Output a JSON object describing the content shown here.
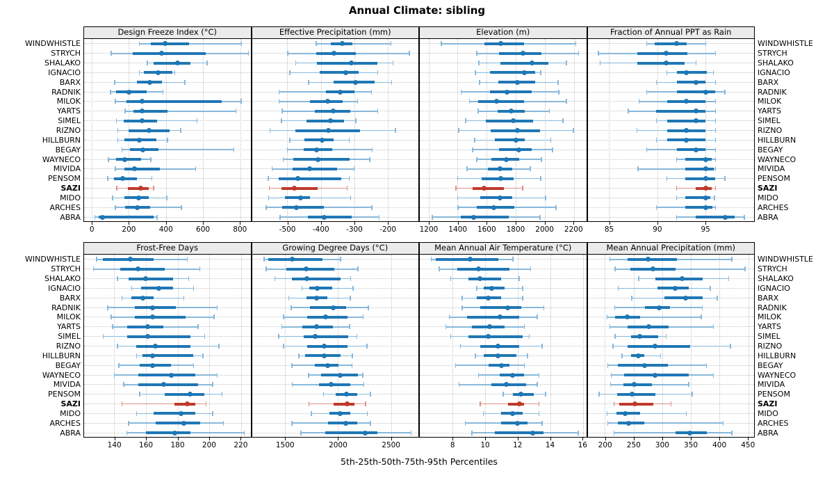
{
  "title": "Annual Climate: sibling",
  "xlabel": "5th-25th-50th-75th-95th Percentiles",
  "locations": [
    "WINDWHISTLE",
    "STRYCH",
    "SHALAKO",
    "IGNACIO",
    "BARX",
    "RADNIK",
    "MILOK",
    "YARTS",
    "SIMEL",
    "RIZNO",
    "HILLBURN",
    "BEGAY",
    "WAYNECO",
    "MIVIDA",
    "PENSOM",
    "SAZI",
    "MIDO",
    "ARCHES",
    "ABRA"
  ],
  "highlight_location": "SAZI",
  "percentile_labels": [
    "5th",
    "25th",
    "50th",
    "75th",
    "95th"
  ],
  "colors": {
    "series": "#1f77b4",
    "series_light": "#88b8da",
    "highlight": "#c0392b",
    "highlight_light": "#dd9187",
    "grid": "#c4c4c4",
    "header_bg": "#ebebeb",
    "border": "#000000"
  },
  "chart_data": [
    {
      "type": "dot-whisker",
      "title": "Design Freeze Index (°C)",
      "xlim": [
        -40,
        855
      ],
      "ticks": [
        0,
        200,
        400,
        600,
        800
      ],
      "rows": [
        [
          258,
          318,
          395,
          524,
          806
        ],
        [
          106,
          223,
          378,
          613,
          844
        ],
        [
          300,
          334,
          462,
          530,
          621
        ],
        [
          258,
          281,
          359,
          435,
          448
        ],
        [
          125,
          245,
          315,
          378,
          502
        ],
        [
          102,
          131,
          201,
          296,
          385
        ],
        [
          129,
          188,
          273,
          700,
          805
        ],
        [
          180,
          227,
          273,
          408,
          777
        ],
        [
          134,
          173,
          273,
          353,
          568
        ],
        [
          142,
          201,
          309,
          420,
          480
        ],
        [
          142,
          176,
          256,
          347,
          408
        ],
        [
          163,
          208,
          277,
          360,
          765
        ],
        [
          91,
          132,
          180,
          268,
          318
        ],
        [
          129,
          176,
          230,
          366,
          560
        ],
        [
          87,
          119,
          167,
          243,
          325
        ],
        [
          135,
          195,
          265,
          309,
          334
        ],
        [
          113,
          176,
          252,
          309,
          404
        ],
        [
          129,
          182,
          246,
          315,
          484
        ],
        [
          18,
          37,
          59,
          334,
          353
        ]
      ]
    },
    {
      "type": "dot-whisker",
      "title": "Effective Precipitation (mm)",
      "xlim": [
        -605,
        -110
      ],
      "ticks": [
        -500,
        -400,
        -300,
        -200
      ],
      "rows": [
        [
          -414,
          -371,
          -336,
          -306,
          -192
        ],
        [
          -499,
          -414,
          -361,
          -295,
          -137
        ],
        [
          -475,
          -411,
          -310,
          -231,
          -185
        ],
        [
          -492,
          -404,
          -327,
          -288,
          -231
        ],
        [
          -437,
          -363,
          -298,
          -240,
          -190
        ],
        [
          -524,
          -384,
          -342,
          -301,
          -250
        ],
        [
          -524,
          -433,
          -380,
          -336,
          -291
        ],
        [
          -515,
          -418,
          -363,
          -312,
          -231
        ],
        [
          -517,
          -442,
          -371,
          -332,
          -296
        ],
        [
          -551,
          -476,
          -378,
          -284,
          -178
        ],
        [
          -492,
          -449,
          -397,
          -363,
          -316
        ],
        [
          -500,
          -452,
          -412,
          -366,
          -247
        ],
        [
          -512,
          -481,
          -408,
          -314,
          -255
        ],
        [
          -545,
          -484,
          -433,
          -351,
          -301
        ],
        [
          -556,
          -525,
          -469,
          -339,
          -316
        ],
        [
          -553,
          -518,
          -478,
          -410,
          -322
        ],
        [
          -555,
          -507,
          -460,
          -432,
          -312
        ],
        [
          -563,
          -515,
          -473,
          -392,
          -248
        ],
        [
          -521,
          -438,
          -390,
          -308,
          -227
        ]
      ]
    },
    {
      "type": "dot-whisker",
      "title": "Elevation (m)",
      "xlim": [
        1140,
        2285
      ],
      "ticks": [
        1200,
        1400,
        1600,
        1800,
        2000,
        2200
      ],
      "rows": [
        [
          1288,
          1584,
          1696,
          1856,
          2213
        ],
        [
          1531,
          1683,
          1851,
          1976,
          2232
        ],
        [
          1547,
          1696,
          1912,
          2024,
          2149
        ],
        [
          1523,
          1624,
          1861,
          1936,
          1973
        ],
        [
          1552,
          1680,
          1813,
          1936,
          2091
        ],
        [
          1424,
          1624,
          1741,
          1912,
          2096
        ],
        [
          1483,
          1541,
          1669,
          1856,
          2149
        ],
        [
          1541,
          1677,
          1768,
          1864,
          2032
        ],
        [
          1456,
          1592,
          1781,
          1920,
          2125
        ],
        [
          1408,
          1629,
          1813,
          1965,
          2197
        ],
        [
          1517,
          1656,
          1803,
          1864,
          2040
        ],
        [
          1504,
          1685,
          1819,
          1912,
          2053
        ],
        [
          1531,
          1632,
          1733,
          1824,
          1976
        ],
        [
          1464,
          1608,
          1691,
          1776,
          1899
        ],
        [
          1400,
          1565,
          1699,
          1784,
          1973
        ],
        [
          1389,
          1504,
          1584,
          1720,
          1848
        ],
        [
          1400,
          1557,
          1691,
          1776,
          2005
        ],
        [
          1403,
          1533,
          1651,
          1792,
          2077
        ],
        [
          1227,
          1421,
          1512,
          1752,
          1968
        ]
      ]
    },
    {
      "type": "dot-whisker",
      "title": "Fraction of Annual PPT as Rain",
      "xlim": [
        82.8,
        100
      ],
      "ticks": [
        85,
        90,
        95
      ],
      "rows": [
        [
          88.9,
          89.7,
          92.0,
          93.0,
          95.0
        ],
        [
          83.9,
          87.9,
          90.9,
          93.1,
          96.0
        ],
        [
          84.1,
          87.9,
          90.9,
          92.8,
          94.0
        ],
        [
          91.0,
          92.0,
          93.0,
          95.1,
          95.8
        ],
        [
          89.9,
          92.0,
          94.0,
          95.0,
          96.0
        ],
        [
          88.9,
          92.0,
          95.0,
          96.0,
          97.0
        ],
        [
          88.1,
          91.0,
          93.0,
          95.0,
          96.0
        ],
        [
          87.0,
          89.9,
          94.0,
          95.0,
          96.0
        ],
        [
          89.9,
          91.0,
          94.0,
          95.0,
          96.0
        ],
        [
          87.9,
          91.0,
          93.0,
          95.0,
          96.0
        ],
        [
          89.9,
          91.0,
          93.0,
          95.0,
          96.0
        ],
        [
          88.9,
          92.0,
          94.0,
          95.0,
          96.0
        ],
        [
          92.0,
          92.9,
          95.0,
          95.6,
          96.0
        ],
        [
          88.0,
          92.9,
          95.0,
          95.8,
          96.0
        ],
        [
          91.0,
          92.9,
          95.0,
          96.0,
          97.0
        ],
        [
          92.0,
          94.0,
          95.0,
          95.6,
          96.0
        ],
        [
          92.0,
          92.9,
          95.0,
          95.5,
          95.9
        ],
        [
          89.9,
          92.9,
          95.0,
          95.7,
          96.0
        ],
        [
          92.0,
          94.0,
          97.0,
          98.0,
          99.0
        ]
      ]
    },
    {
      "type": "dot-whisker",
      "title": "Frost-Free Days",
      "xlim": [
        121,
        226
      ],
      "ticks": [
        140,
        160,
        180,
        200,
        220
      ],
      "rows": [
        [
          129,
          133,
          150,
          165,
          186
        ],
        [
          127,
          144,
          155,
          172,
          194
        ],
        [
          142,
          149,
          160,
          177,
          187
        ],
        [
          151,
          157,
          168,
          177,
          190
        ],
        [
          145,
          151,
          158,
          165,
          184
        ],
        [
          136,
          153,
          164,
          179,
          205
        ],
        [
          138,
          153,
          164,
          185,
          203
        ],
        [
          139,
          148,
          161,
          171,
          193
        ],
        [
          133,
          148,
          161,
          188,
          197
        ],
        [
          142,
          154,
          166,
          188,
          206
        ],
        [
          154,
          158,
          164,
          190,
          196
        ],
        [
          143,
          156,
          164,
          176,
          190
        ],
        [
          140,
          155,
          176,
          191,
          205
        ],
        [
          146,
          155,
          171,
          193,
          202
        ],
        [
          156,
          172,
          188,
          197,
          208
        ],
        [
          145,
          178,
          186,
          191,
          198
        ],
        [
          154,
          165,
          182,
          191,
          202
        ],
        [
          149,
          166,
          184,
          194,
          209
        ],
        [
          148,
          160,
          178,
          188,
          222
        ]
      ]
    },
    {
      "type": "dot-whisker",
      "title": "Growing Degree Days (°C)",
      "xlim": [
        1190,
        2755
      ],
      "ticks": [
        1500,
        2000,
        2500
      ],
      "rows": [
        [
          1304,
          1341,
          1570,
          1852,
          2022
        ],
        [
          1324,
          1515,
          1700,
          1967,
          2185
        ],
        [
          1407,
          1565,
          1707,
          2026,
          2117
        ],
        [
          1661,
          1728,
          1802,
          1946,
          2141
        ],
        [
          1537,
          1700,
          1798,
          1902,
          2113
        ],
        [
          1559,
          1733,
          1954,
          2076,
          2283
        ],
        [
          1487,
          1707,
          1885,
          2091,
          2237
        ],
        [
          1472,
          1661,
          1798,
          1950,
          2109
        ],
        [
          1443,
          1678,
          1783,
          2098,
          2178
        ],
        [
          1487,
          1711,
          1870,
          2087,
          2272
        ],
        [
          1630,
          1689,
          1867,
          2026,
          2135
        ],
        [
          1565,
          1783,
          1900,
          2004,
          2130
        ],
        [
          1722,
          1837,
          2020,
          2185,
          2233
        ],
        [
          1570,
          1820,
          1935,
          2113,
          2243
        ],
        [
          1863,
          1978,
          2080,
          2178,
          2304
        ],
        [
          1726,
          1957,
          2085,
          2157,
          2259
        ],
        [
          1748,
          1917,
          2022,
          2117,
          2276
        ],
        [
          1565,
          1907,
          2070,
          2178,
          2304
        ],
        [
          1652,
          1880,
          2254,
          2370,
          2685
        ]
      ]
    },
    {
      "type": "dot-whisker",
      "title": "Mean Annual Air Temperature (°C)",
      "xlim": [
        6,
        16.2
      ],
      "ticks": [
        8,
        10,
        12,
        14,
        16
      ],
      "rows": [
        [
          6.7,
          7.0,
          9.1,
          10.8,
          11.7
        ],
        [
          7.2,
          8.3,
          9.6,
          11.5,
          12.8
        ],
        [
          7.9,
          9.0,
          9.7,
          11.0,
          12.1
        ],
        [
          9.5,
          9.9,
          10.4,
          11.2,
          12.3
        ],
        [
          8.6,
          9.5,
          10.2,
          11.0,
          12.3
        ],
        [
          8.6,
          9.7,
          11.4,
          12.2,
          13.6
        ],
        [
          7.8,
          8.9,
          10.9,
          12.1,
          13.2
        ],
        [
          7.6,
          9.2,
          10.3,
          11.2,
          12.4
        ],
        [
          7.9,
          9.0,
          10.2,
          12.3,
          12.7
        ],
        [
          8.5,
          9.7,
          10.8,
          12.1,
          13.5
        ],
        [
          9.4,
          9.9,
          10.8,
          11.9,
          12.6
        ],
        [
          8.2,
          10.2,
          11.0,
          11.5,
          12.4
        ],
        [
          9.6,
          10.9,
          11.7,
          12.4,
          13.3
        ],
        [
          8.4,
          10.4,
          11.3,
          12.5,
          13.2
        ],
        [
          11.1,
          11.7,
          12.2,
          13.0,
          13.7
        ],
        [
          9.7,
          11.4,
          12.1,
          12.4,
          13.3
        ],
        [
          9.9,
          11.0,
          11.7,
          12.3,
          13.3
        ],
        [
          8.8,
          11.0,
          12.0,
          12.6,
          13.5
        ],
        [
          9.2,
          10.6,
          12.9,
          13.6,
          15.7
        ]
      ]
    },
    {
      "type": "dot-whisker",
      "title": "Mean Annual Precipitation (mm)",
      "xlim": [
        170,
        460
      ],
      "ticks": [
        200,
        250,
        300,
        350,
        400,
        450
      ],
      "rows": [
        [
          209,
          240,
          275,
          326,
          421
        ],
        [
          218,
          245,
          284,
          323,
          444
        ],
        [
          259,
          288,
          335,
          370,
          416
        ],
        [
          223,
          292,
          323,
          346,
          384
        ],
        [
          247,
          304,
          341,
          370,
          396
        ],
        [
          217,
          270,
          295,
          314,
          370
        ],
        [
          204,
          218,
          239,
          262,
          368
        ],
        [
          209,
          240,
          276,
          311,
          389
        ],
        [
          218,
          246,
          261,
          293,
          307
        ],
        [
          214,
          240,
          287,
          349,
          419
        ],
        [
          230,
          246,
          258,
          269,
          297
        ],
        [
          205,
          223,
          269,
          310,
          377
        ],
        [
          211,
          234,
          288,
          346,
          389
        ],
        [
          210,
          232,
          251,
          282,
          346
        ],
        [
          190,
          221,
          247,
          288,
          352
        ],
        [
          216,
          225,
          252,
          284,
          315
        ],
        [
          204,
          220,
          235,
          262,
          342
        ],
        [
          205,
          223,
          241,
          269,
          406
        ],
        [
          216,
          323,
          348,
          378,
          421
        ]
      ]
    }
  ]
}
